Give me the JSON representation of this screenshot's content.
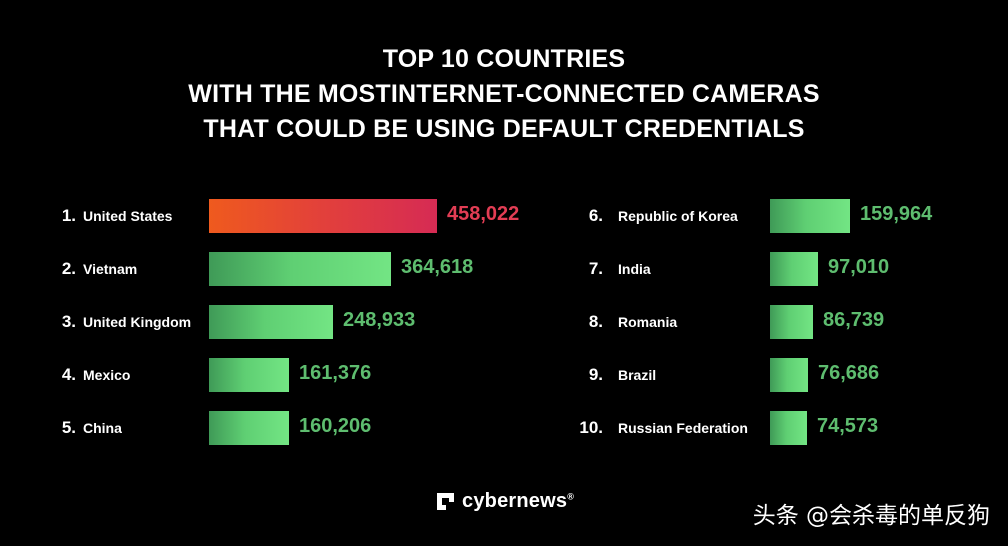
{
  "title_lines": [
    "TOP 10 COUNTRIES",
    "WITH THE MOSTINTERNET-CONNECTED CAMERAS",
    "THAT COULD BE USING DEFAULT CREDENTIALS"
  ],
  "chart_data": {
    "type": "bar",
    "orientation": "horizontal",
    "categories": [
      "United States",
      "Vietnam",
      "United Kingdom",
      "Mexico",
      "China",
      "Republic of Korea",
      "India",
      "Romania",
      "Brazil",
      "Russian Federation"
    ],
    "ranks": [
      "1.",
      "2.",
      "3.",
      "4.",
      "5.",
      "6.",
      "7.",
      "8.",
      "9.",
      "10."
    ],
    "values": [
      458022,
      364618,
      248933,
      161376,
      160206,
      159964,
      97010,
      86739,
      76686,
      74573
    ],
    "value_labels": [
      "458,022",
      "364,618",
      "248,933",
      "161,376",
      "160,206",
      "159,964",
      "97,010",
      "86,739",
      "76,686",
      "74,573"
    ],
    "highlight_color": "#e2403b",
    "bar_color": "#5fcf73",
    "value_color": "#5ebd6f"
  },
  "logo": {
    "text": "cybernews",
    "mark": "®"
  },
  "watermark": "头条 @会杀毒的单反狗"
}
